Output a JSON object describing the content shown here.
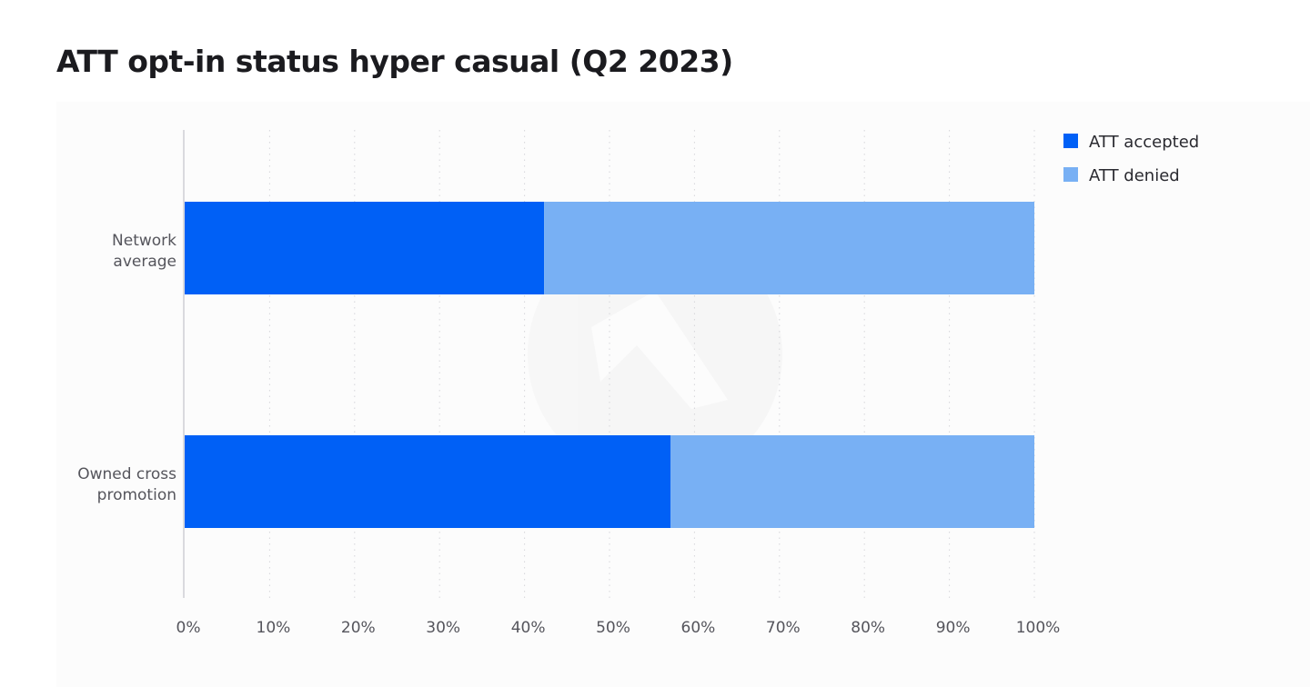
{
  "chart_data": {
    "type": "bar",
    "orientation": "horizontal",
    "stacked": true,
    "title": "ATT opt-in status hyper casual (Q2 2023)",
    "categories": [
      [
        "Network",
        "average"
      ],
      [
        "Owned cross",
        "promotion"
      ]
    ],
    "series": [
      {
        "name": "ATT accepted",
        "color": "#0060f6",
        "values": [
          42.3,
          57.2
        ]
      },
      {
        "name": "ATT denied",
        "color": "#78b0f4",
        "values": [
          57.7,
          42.8
        ]
      }
    ],
    "xlim": [
      0,
      100
    ],
    "x_ticks": [
      0,
      10,
      20,
      30,
      40,
      50,
      60,
      70,
      80,
      90,
      100
    ],
    "x_tick_labels": [
      "0%",
      "10%",
      "20%",
      "30%",
      "40%",
      "50%",
      "60%",
      "70%",
      "80%",
      "90%",
      "100%"
    ],
    "grid": "vertical dotted",
    "legend_position": "top-right",
    "xlabel": "",
    "ylabel": ""
  }
}
